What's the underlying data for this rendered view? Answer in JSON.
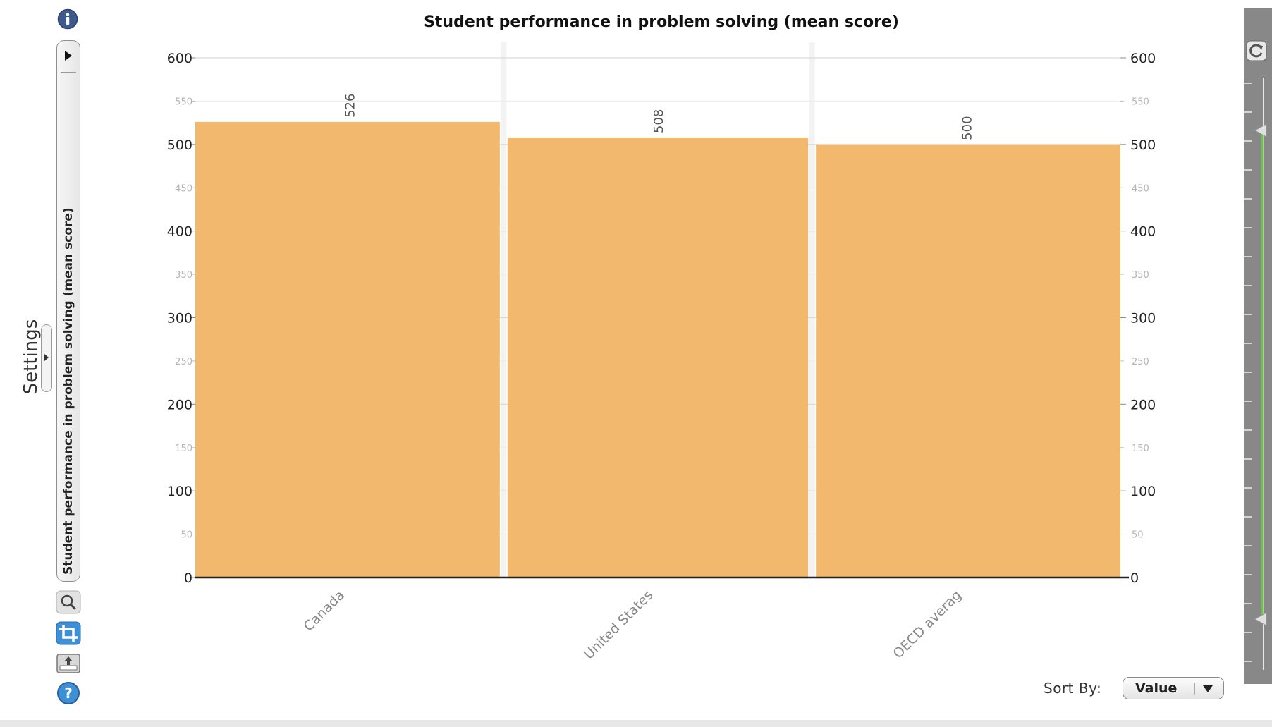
{
  "toolbar": {
    "settings_label": "Settings",
    "chart_tab_label": "Student performance in problem solving (mean score)",
    "icons": [
      "info-icon",
      "play-icon",
      "search-icon",
      "crop-icon",
      "export-icon",
      "help-icon"
    ]
  },
  "sort": {
    "label": "Sort By:",
    "value": "Value"
  },
  "colors": {
    "bar": "#f2b96e",
    "tool_accent": "#3d8fd6",
    "icon_dark": "#3f5a8c",
    "slider_track": "#6cc24a"
  },
  "chart_data": {
    "type": "bar",
    "title": "Student performance in problem solving (mean score)",
    "categories": [
      "Canada",
      "United States",
      "OECD averag"
    ],
    "values": [
      526,
      508,
      500
    ],
    "data_labels": [
      "526",
      "508",
      "500"
    ],
    "ylim": [
      0,
      600
    ],
    "major_ticks": [
      "0",
      "100",
      "200",
      "300",
      "400",
      "500",
      "600"
    ],
    "minor_ticks": [
      "50",
      "150",
      "250",
      "350",
      "450",
      "550"
    ],
    "y_axis_both_sides": true,
    "grid": true,
    "xlabel": "",
    "ylabel": ""
  }
}
